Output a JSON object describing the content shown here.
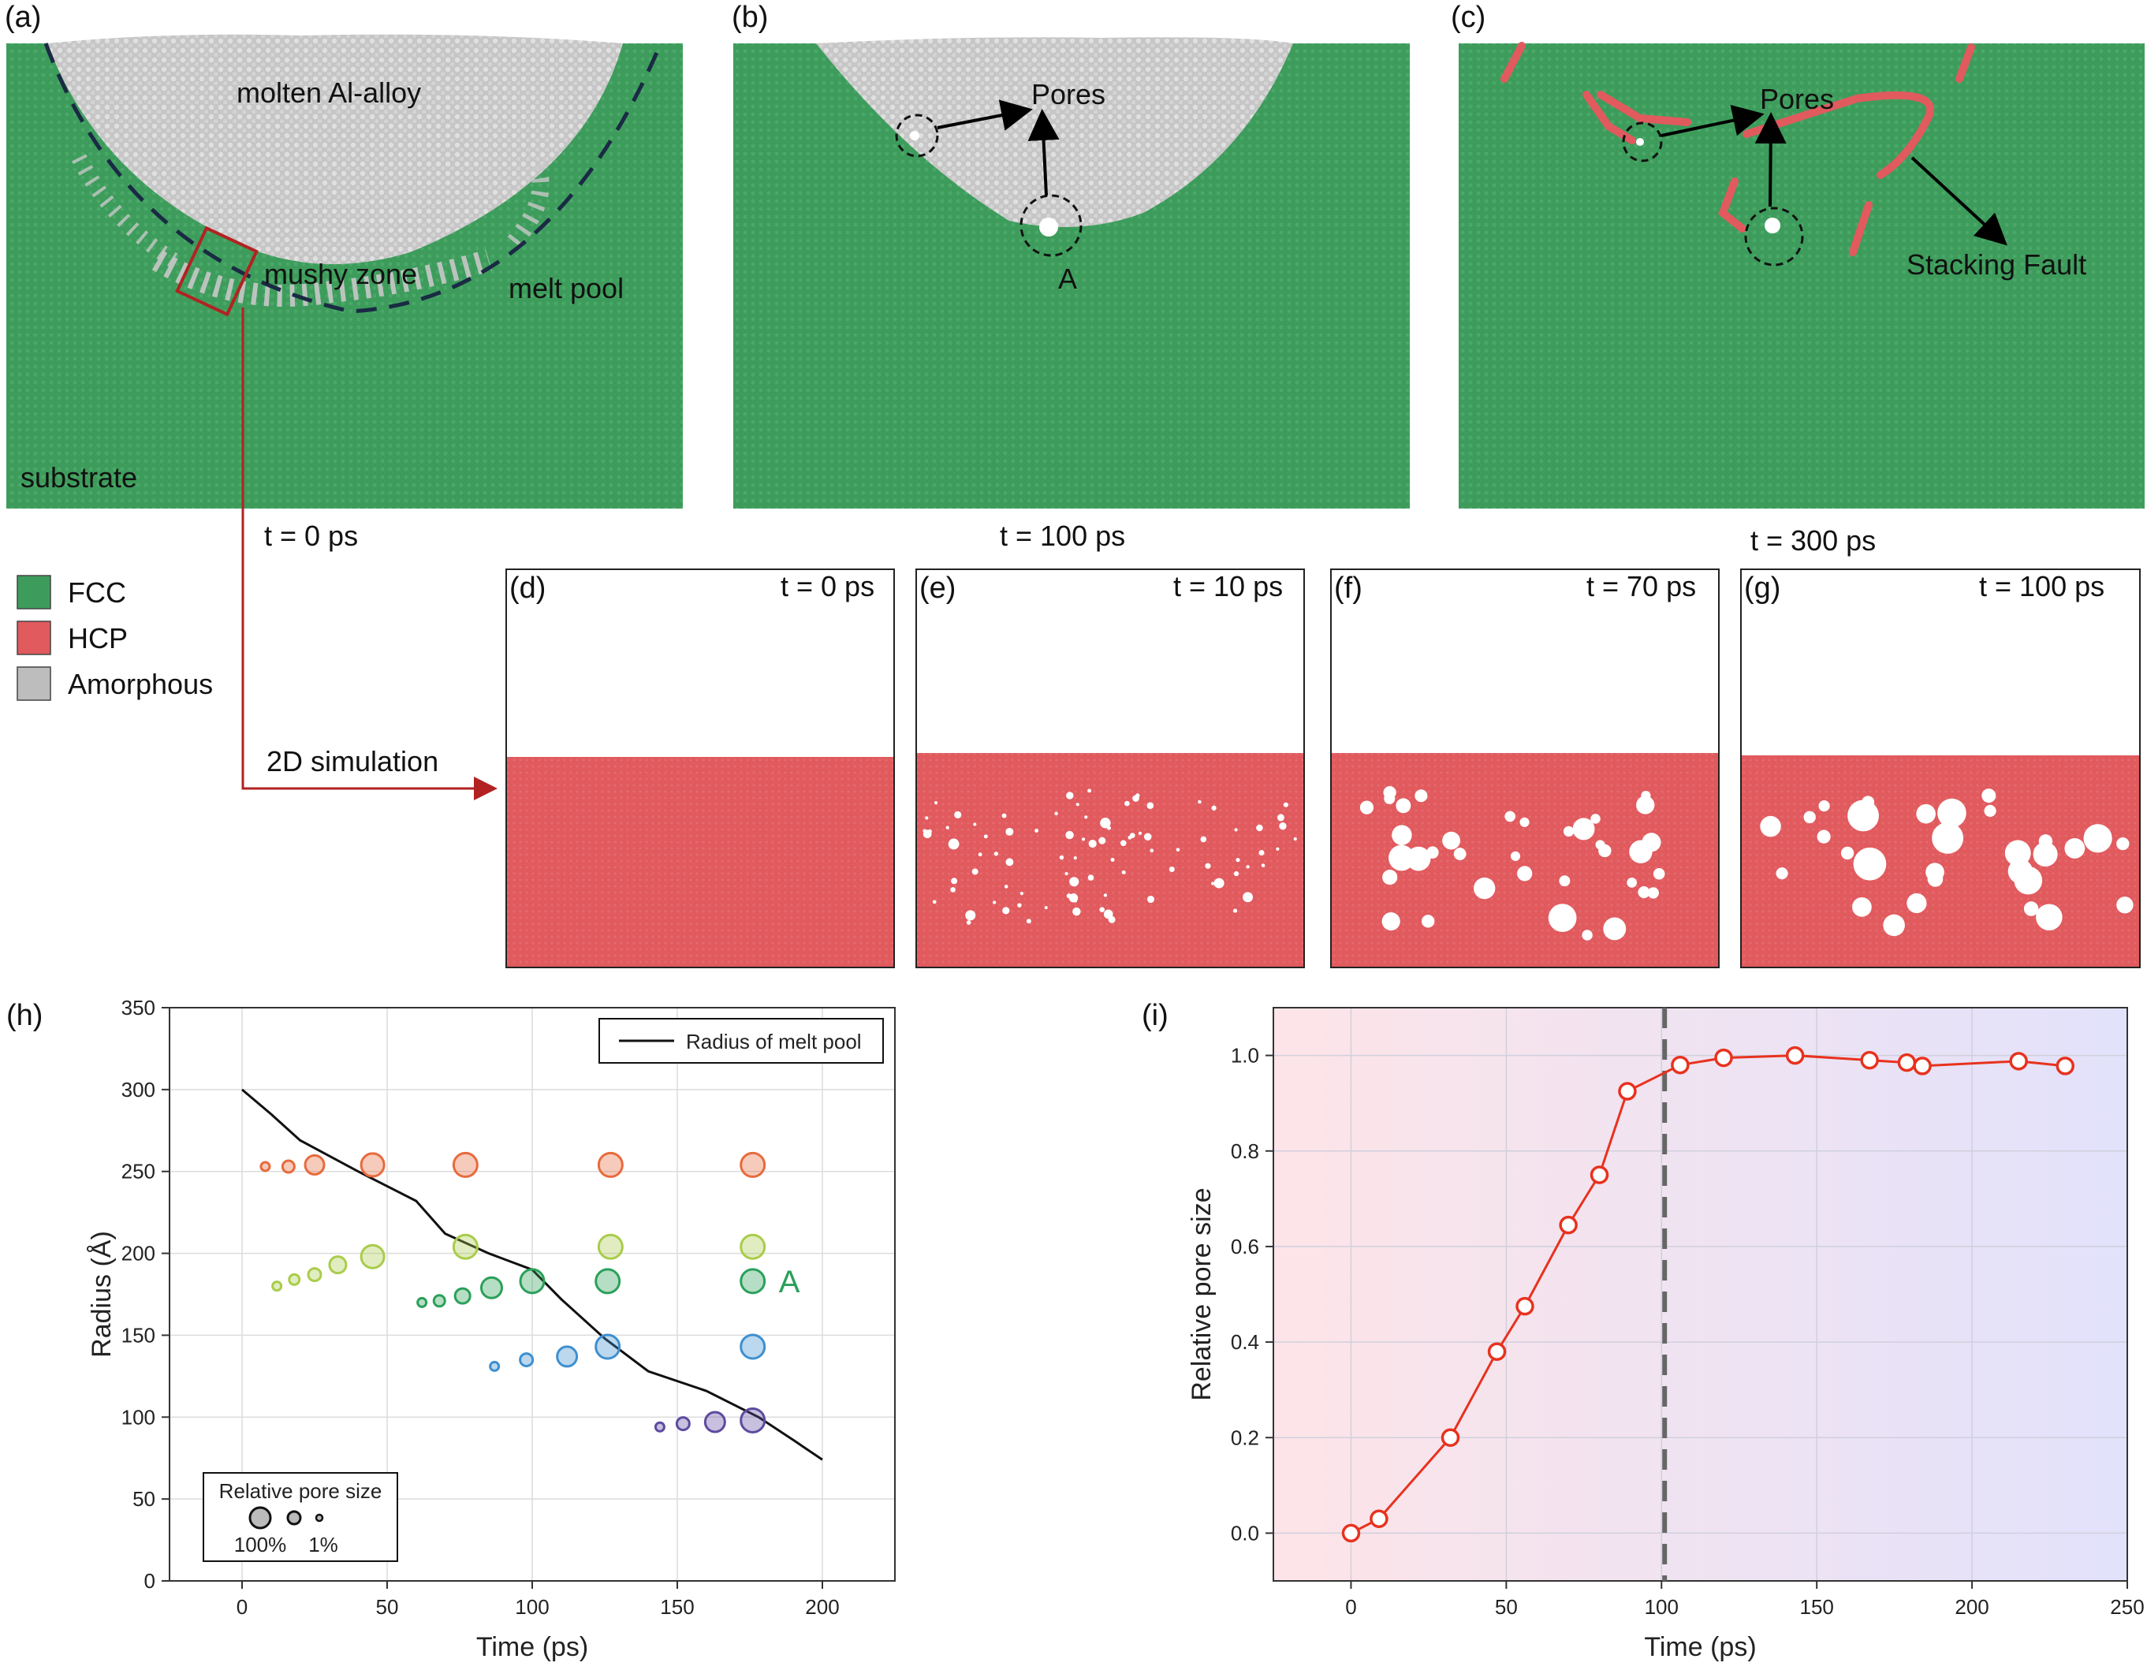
{
  "figure": {
    "panels": {
      "a": {
        "label": "(a)",
        "time": "t = 0 ps",
        "annotations": [
          "molten Al-alloy",
          "mushy zone",
          "melt pool",
          "substrate"
        ],
        "callout": "2D simulation"
      },
      "b": {
        "label": "(b)",
        "time": "t = 100 ps",
        "annotations": [
          "Pores",
          "A"
        ]
      },
      "c": {
        "label": "(c)",
        "time": "t = 300 ps",
        "annotations": [
          "Pores",
          "Stacking Fault"
        ]
      },
      "d": {
        "label": "(d)",
        "time": "t = 0 ps"
      },
      "e": {
        "label": "(e)",
        "time": "t = 10 ps"
      },
      "f": {
        "label": "(f)",
        "time": "t = 70 ps"
      },
      "g": {
        "label": "(g)",
        "time": "t = 100 ps"
      },
      "h": {
        "label": "(h)"
      },
      "i": {
        "label": "(i)"
      }
    },
    "legend": [
      {
        "name": "FCC",
        "color": "#3d9c5b"
      },
      {
        "name": "HCP",
        "color": "#e05a5e"
      },
      {
        "name": "Amorphous",
        "color": "#bdbdbd"
      }
    ],
    "colors": {
      "fcc": "#3d9c5b",
      "hcp": "#e05a5e",
      "amorphous": "#c8c8c8",
      "annotation_red": "#b22222"
    }
  },
  "chart_data": [
    {
      "id": "h",
      "type": "scatter",
      "xlabel": "Time (ps)",
      "ylabel": "Radius (Å)",
      "xlim": [
        -25,
        225
      ],
      "ylim": [
        0,
        350
      ],
      "xticks": [
        0,
        50,
        100,
        150,
        200
      ],
      "yticks": [
        0,
        50,
        100,
        150,
        200,
        250,
        300,
        350
      ],
      "grid": true,
      "legend": {
        "line_label": "Radius of melt pool",
        "size_title": "Relative pore size",
        "size_labels": [
          "100%",
          "1%"
        ]
      },
      "annotation": "A",
      "line": {
        "name": "Radius of melt pool",
        "x": [
          0,
          10,
          20,
          40,
          60,
          70,
          85,
          100,
          110,
          125,
          140,
          160,
          178,
          190,
          200
        ],
        "y": [
          300,
          285,
          269,
          250,
          232,
          212,
          200,
          190,
          172,
          148,
          128,
          116,
          100,
          86,
          74
        ]
      },
      "series": [
        {
          "name": "pore 1",
          "color": "#e86a3c",
          "x": [
            8,
            16,
            25,
            45,
            77,
            127,
            176
          ],
          "y": [
            253,
            253,
            254,
            254,
            254,
            254,
            254
          ],
          "size": [
            0.05,
            0.25,
            0.7,
            0.95,
            1.0,
            1.0,
            1.0
          ]
        },
        {
          "name": "pore 2",
          "color": "#a9cc4a",
          "x": [
            12,
            18,
            25,
            33,
            45,
            77,
            127,
            176
          ],
          "y": [
            180,
            184,
            187,
            193,
            198,
            204,
            204,
            204
          ],
          "size": [
            0.05,
            0.15,
            0.3,
            0.55,
            0.95,
            1.0,
            1.0,
            1.0
          ]
        },
        {
          "name": "pore 3 (A)",
          "color": "#2aa05a",
          "x": [
            62,
            68,
            76,
            86,
            100,
            126,
            176
          ],
          "y": [
            170,
            171,
            174,
            179,
            183,
            183,
            183
          ],
          "size": [
            0.05,
            0.2,
            0.45,
            0.8,
            1.0,
            1.0,
            1.0
          ]
        },
        {
          "name": "pore 4",
          "color": "#3e8fcf",
          "x": [
            87,
            98,
            112,
            126,
            176
          ],
          "y": [
            131,
            135,
            137,
            143,
            143
          ],
          "size": [
            0.05,
            0.3,
            0.75,
            1.0,
            1.0
          ]
        },
        {
          "name": "pore 5",
          "color": "#5e4aa0",
          "x": [
            144,
            152,
            163,
            176
          ],
          "y": [
            94,
            96,
            97,
            98
          ],
          "size": [
            0.05,
            0.3,
            0.75,
            1.0
          ]
        }
      ]
    },
    {
      "id": "i",
      "type": "line",
      "xlabel": "Time (ps)",
      "ylabel": "Relative pore size",
      "xlim": [
        -25,
        250
      ],
      "ylim": [
        -0.1,
        1.1
      ],
      "xticks": [
        0,
        50,
        100,
        150,
        200,
        250
      ],
      "yticks": [
        0.0,
        0.2,
        0.4,
        0.6,
        0.8,
        1.0
      ],
      "grid": true,
      "divider_x": 101,
      "series": [
        {
          "name": "Relative pore size",
          "color": "#e8321e",
          "x": [
            0,
            9,
            32,
            47,
            56,
            70,
            80,
            89,
            106,
            120,
            143,
            167,
            179,
            184,
            215,
            230
          ],
          "y": [
            0.0,
            0.03,
            0.2,
            0.38,
            0.475,
            0.645,
            0.75,
            0.925,
            0.98,
            0.995,
            1.0,
            0.99,
            0.985,
            0.978,
            0.988,
            0.978
          ]
        }
      ]
    }
  ]
}
